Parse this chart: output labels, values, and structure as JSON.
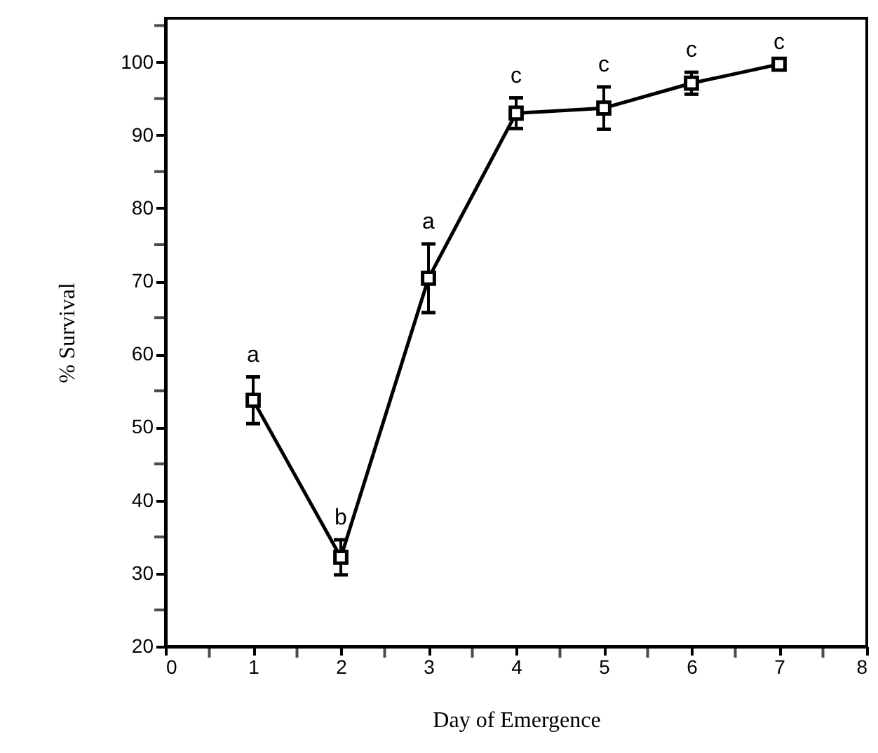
{
  "chart_data": {
    "type": "line",
    "xlabel": "Day of Emergence",
    "ylabel": "% Survival",
    "x": [
      1,
      2,
      3,
      4,
      5,
      6,
      7
    ],
    "series": [
      {
        "color": "#000000",
        "values": [
          53.7,
          32.2,
          70.4,
          93.0,
          93.7,
          97.1,
          99.7
        ],
        "errors": [
          3.2,
          2.4,
          4.7,
          2.1,
          2.9,
          1.5,
          null
        ]
      }
    ],
    "annotations": [
      {
        "text": "a",
        "x": 1,
        "y": 53.7
      },
      {
        "text": "b",
        "x": 2,
        "y": 32.2
      },
      {
        "text": "a",
        "x": 3,
        "y": 70.4
      },
      {
        "text": "c",
        "x": 4,
        "y": 93.0
      },
      {
        "text": "c",
        "x": 5,
        "y": 93.7
      },
      {
        "text": "c",
        "x": 6,
        "y": 97.1
      },
      {
        "text": "c",
        "x": 7,
        "y": 99.7
      }
    ],
    "xlim": [
      0,
      8
    ],
    "xticks": [
      0,
      {
        "value": 0.5,
        "label": null
      },
      1,
      {
        "value": 1.5,
        "label": null
      },
      2,
      {
        "value": 2.5,
        "label": null
      },
      3,
      {
        "value": 3.5,
        "label": null
      },
      4,
      {
        "value": 4.5,
        "label": null
      },
      5,
      {
        "value": 5.5,
        "label": null
      },
      6,
      {
        "value": 6.5,
        "label": null
      },
      7,
      {
        "value": 7.5,
        "label": null
      },
      8
    ],
    "ylim": [
      20,
      106
    ],
    "yticks": [
      20,
      {
        "value": 25,
        "label": null
      },
      30,
      {
        "value": 35,
        "label": null
      },
      40,
      {
        "value": 45,
        "label": null
      },
      50,
      {
        "value": 55,
        "label": null
      },
      60,
      {
        "value": 65,
        "label": null
      },
      70,
      {
        "value": 75,
        "label": null
      },
      80,
      {
        "value": 85,
        "label": null
      },
      90,
      {
        "value": 95,
        "label": null
      },
      100,
      {
        "value": 105,
        "label": null
      }
    ],
    "marker": "square",
    "line_style": "solid",
    "grid": false
  }
}
